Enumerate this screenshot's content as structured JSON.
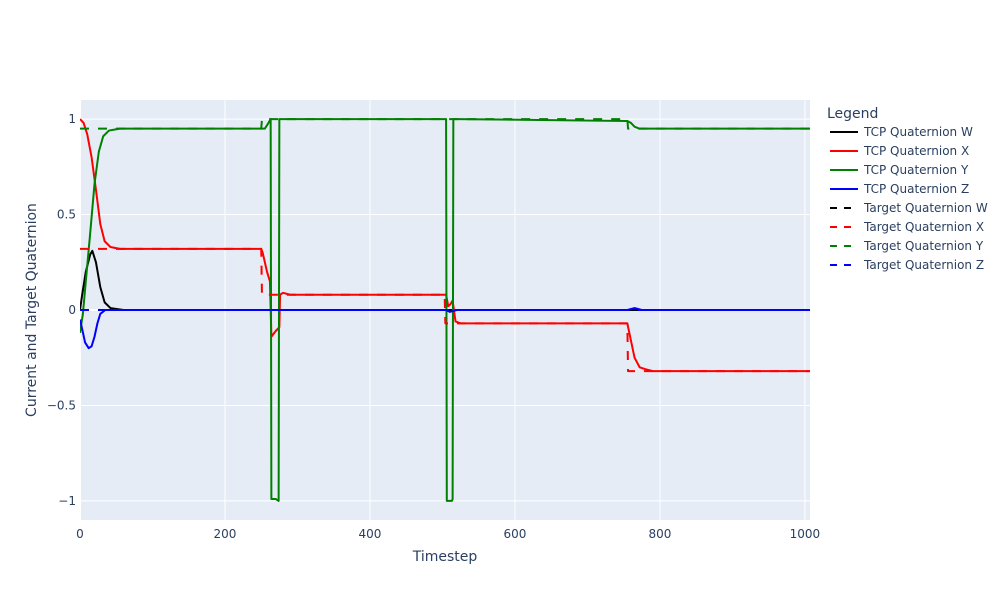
{
  "chart_data": {
    "type": "line",
    "xlabel": "Timestep",
    "ylabel": "Current and Target Quaternion",
    "xlim": [
      0,
      1007
    ],
    "ylim": [
      -1.1,
      1.1
    ],
    "x_ticks": [
      0,
      200,
      400,
      600,
      800,
      1000
    ],
    "x_tick_labels": [
      "0",
      "200",
      "400",
      "600",
      "800",
      "1000"
    ],
    "y_ticks": [
      1,
      0.5,
      0,
      -0.5,
      -1
    ],
    "y_tick_labels": [
      "1",
      "0.5",
      "0",
      "−0.5",
      "−1"
    ],
    "grid": true,
    "plot_background": "#e5ecf6",
    "legend": {
      "title": "Legend",
      "position": "right"
    },
    "series": [
      {
        "name": "TCP Quaternion W",
        "color": "#000000",
        "dash": "solid",
        "points": [
          [
            0,
            0.0
          ],
          [
            3,
            0.08
          ],
          [
            8,
            0.2
          ],
          [
            14,
            0.29
          ],
          [
            17,
            0.31
          ],
          [
            22,
            0.25
          ],
          [
            28,
            0.12
          ],
          [
            34,
            0.04
          ],
          [
            42,
            0.01
          ],
          [
            60,
            0.0
          ],
          [
            1007,
            0.0
          ]
        ]
      },
      {
        "name": "TCP Quaternion X",
        "color": "#ff0000",
        "dash": "solid",
        "points": [
          [
            0,
            1.0
          ],
          [
            5,
            0.98
          ],
          [
            10,
            0.92
          ],
          [
            16,
            0.8
          ],
          [
            22,
            0.63
          ],
          [
            28,
            0.45
          ],
          [
            34,
            0.36
          ],
          [
            42,
            0.33
          ],
          [
            55,
            0.32
          ],
          [
            250,
            0.32
          ],
          [
            252,
            0.3
          ],
          [
            258,
            0.2
          ],
          [
            262,
            0.15
          ],
          [
            264,
            -0.14
          ],
          [
            270,
            -0.11
          ],
          [
            275,
            -0.09
          ],
          [
            276,
            0.08
          ],
          [
            280,
            0.09
          ],
          [
            290,
            0.08
          ],
          [
            300,
            0.08
          ],
          [
            505,
            0.08
          ],
          [
            508,
            0.02
          ],
          [
            511,
            0.03
          ],
          [
            514,
            0.05
          ],
          [
            518,
            -0.06
          ],
          [
            525,
            -0.07
          ],
          [
            755,
            -0.07
          ],
          [
            760,
            -0.16
          ],
          [
            765,
            -0.25
          ],
          [
            772,
            -0.3
          ],
          [
            780,
            -0.31
          ],
          [
            790,
            -0.32
          ],
          [
            1007,
            -0.32
          ]
        ]
      },
      {
        "name": "TCP Quaternion Y",
        "color": "#008000",
        "dash": "solid",
        "points": [
          [
            0,
            -0.12
          ],
          [
            4,
            -0.02
          ],
          [
            8,
            0.15
          ],
          [
            14,
            0.4
          ],
          [
            20,
            0.66
          ],
          [
            26,
            0.83
          ],
          [
            32,
            0.91
          ],
          [
            40,
            0.94
          ],
          [
            55,
            0.95
          ],
          [
            255,
            0.95
          ],
          [
            260,
            0.98
          ],
          [
            263,
            1.0
          ],
          [
            264,
            -0.99
          ],
          [
            270,
            -0.99
          ],
          [
            274,
            -1.0
          ],
          [
            275,
            1.0
          ],
          [
            280,
            1.0
          ],
          [
            505,
            1.0
          ],
          [
            506,
            -1.0
          ],
          [
            513,
            -1.0
          ],
          [
            514,
            -0.99
          ],
          [
            515,
            1.0
          ],
          [
            520,
            1.0
          ],
          [
            755,
            0.99
          ],
          [
            760,
            0.98
          ],
          [
            765,
            0.96
          ],
          [
            772,
            0.95
          ],
          [
            1007,
            0.95
          ]
        ]
      },
      {
        "name": "TCP Quaternion Z",
        "color": "#0000ff",
        "dash": "solid",
        "points": [
          [
            0,
            -0.05
          ],
          [
            3,
            -0.1
          ],
          [
            7,
            -0.17
          ],
          [
            12,
            -0.2
          ],
          [
            16,
            -0.19
          ],
          [
            20,
            -0.14
          ],
          [
            24,
            -0.07
          ],
          [
            28,
            -0.02
          ],
          [
            35,
            0.0
          ],
          [
            80,
            0.0
          ],
          [
            250,
            0.0
          ],
          [
            300,
            0.0
          ],
          [
            500,
            0.0
          ],
          [
            505,
            0.0
          ],
          [
            510,
            -0.01
          ],
          [
            520,
            0.0
          ],
          [
            755,
            0.0
          ],
          [
            765,
            0.01
          ],
          [
            775,
            0.0
          ],
          [
            1007,
            0.0
          ]
        ]
      },
      {
        "name": "Target Quaternion W",
        "color": "#000000",
        "dash": "dash",
        "points": [
          [
            0,
            0.0
          ],
          [
            1007,
            0.0
          ]
        ]
      },
      {
        "name": "Target Quaternion X",
        "color": "#ff0000",
        "dash": "dash",
        "points": [
          [
            0,
            0.32
          ],
          [
            250,
            0.32
          ],
          [
            251,
            0.08
          ],
          [
            503,
            0.08
          ],
          [
            504,
            -0.07
          ],
          [
            755,
            -0.07
          ],
          [
            756,
            -0.32
          ],
          [
            1007,
            -0.32
          ]
        ]
      },
      {
        "name": "Target Quaternion Y",
        "color": "#008000",
        "dash": "dash",
        "points": [
          [
            0,
            0.95
          ],
          [
            250,
            0.95
          ],
          [
            251,
            1.0
          ],
          [
            503,
            1.0
          ],
          [
            504,
            1.0
          ],
          [
            755,
            1.0
          ],
          [
            756,
            0.95
          ],
          [
            1007,
            0.95
          ]
        ]
      },
      {
        "name": "Target Quaternion Z",
        "color": "#0000ff",
        "dash": "dash",
        "points": [
          [
            0,
            0.0
          ],
          [
            1007,
            0.0
          ]
        ]
      }
    ]
  }
}
